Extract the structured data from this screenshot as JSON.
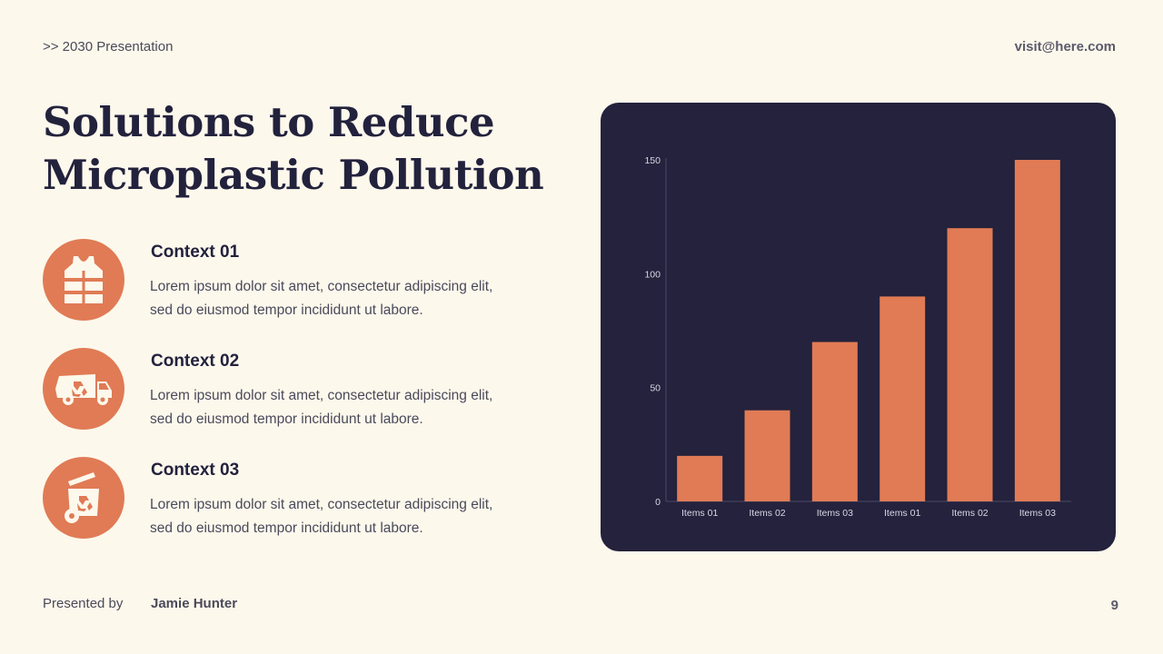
{
  "header": {
    "presentation_label": ">> 2030 Presentation",
    "email": "visit@here.com"
  },
  "title": {
    "line1": "Solutions to Reduce",
    "line2": "Microplastic Pollution"
  },
  "items": [
    {
      "icon": "safety-vest-icon",
      "heading": "Context 01",
      "text": "Lorem ipsum dolor sit amet, consectetur adipiscing elit, sed do eiusmod tempor incididunt ut labore."
    },
    {
      "icon": "recycling-truck-icon",
      "heading": "Context 02",
      "text": "Lorem ipsum dolor sit amet, consectetur adipiscing elit, sed do eiusmod tempor incididunt ut labore."
    },
    {
      "icon": "recycling-bin-icon",
      "heading": "Context 03",
      "text": "Lorem ipsum dolor sit amet, consectetur adipiscing elit, sed do eiusmod tempor incididunt ut labore."
    }
  ],
  "footer": {
    "presented_by": "Presented by",
    "presenter": "Jamie Hunter",
    "page_number": "9"
  },
  "colors": {
    "accent": "#e07b55",
    "dark": "#24223c",
    "background": "#fdf8ec"
  },
  "chart_data": {
    "type": "bar",
    "categories": [
      "Items 01",
      "Items 02",
      "Items 03",
      "Items 01",
      "Items 02",
      "Items 03"
    ],
    "values": [
      20,
      40,
      70,
      90,
      120,
      150
    ],
    "ylim": [
      0,
      150
    ],
    "yticks": [
      0,
      50,
      100,
      150
    ],
    "grid": false,
    "legend": "none"
  }
}
